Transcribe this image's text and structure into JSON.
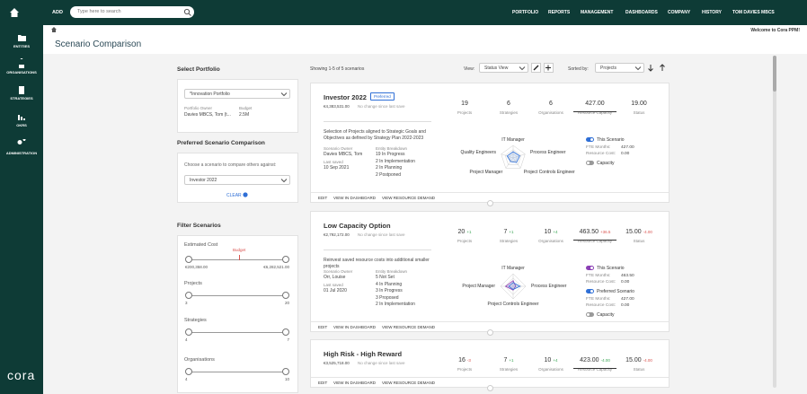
{
  "nav": {
    "add": "ADD",
    "search": "Type here to search",
    "links": [
      "PORTFOLIO",
      "REPORTS",
      "MANAGEMENT",
      "DASHBOARDS",
      "COMPANY",
      "HISTORY",
      "TOM DAVIES MBCS"
    ]
  },
  "sidebar": {
    "items": [
      "ENTITIES",
      "ORGANISATIONS",
      "STRATEGIES",
      "OKRS",
      "ADMINISTRATION"
    ],
    "logo": "cora"
  },
  "welcome": "Welcome to Cora PPM!",
  "page_title": "Scenario Comparison",
  "select_portfolio": {
    "heading": "Select Portfolio",
    "selected": "*Innovation Portfolio",
    "owner_label": "Portfolio Owner",
    "owner": "Davies MBCS, Tom (t...",
    "budget_label": "Budget",
    "budget": "2.5M"
  },
  "preferred": {
    "heading": "Preferred Scenario Comparison",
    "prompt": "Choose a scenario to compare others against:",
    "selected": "Investor 2022",
    "clear": "CLEAR"
  },
  "filters": {
    "heading": "Filter Scenarios",
    "items": [
      {
        "label": "Estimated Cost",
        "marker": "Budget",
        "min": "€200,358.00",
        "max": "€6,282,521.00"
      },
      {
        "label": "Projects",
        "min": "3",
        "max": "20"
      },
      {
        "label": "Strategies",
        "min": "4",
        "max": "7"
      },
      {
        "label": "Organisations",
        "min": "4",
        "max": "10"
      }
    ]
  },
  "toolbar": {
    "showing": "Showing 1-5 of 5 scenarios",
    "view_label": "View:",
    "view": "Status View",
    "sort_label": "Sorted by:",
    "sort": "Projects"
  },
  "scenarios": [
    {
      "name": "Investor 2022",
      "badge": "Preferred",
      "cost": "€4,383,531.00",
      "change": "No change since last save",
      "stats": [
        {
          "value": "19",
          "label": "Projects"
        },
        {
          "value": "6",
          "label": "Strategies"
        },
        {
          "value": "6",
          "label": "Organisations"
        },
        {
          "value": "427.00",
          "label": "Resource Capacity"
        },
        {
          "value": "19.00",
          "label": "Status"
        }
      ],
      "description": "Selection of Projects aligned to Strategic Goals and Objectives as defined by Strategy Plan 2022-2023",
      "owner_label": "Scenario Owner",
      "owner": "Davies MBCS, Tom",
      "saved_label": "Last saved",
      "saved": "10 Sep 2021",
      "breakdown_label": "Entity Breakdown",
      "breakdown": [
        "19 In Progress",
        "2 In Implementation",
        "2 In Planning",
        "2 Postponed"
      ],
      "radar": [
        "IT Manager",
        "Process Engineer",
        "Project Controls Engineer",
        "Project Manager",
        "Quality Engineers"
      ],
      "legend": [
        {
          "toggle": "This Scenario",
          "on": true,
          "color": "#2f6fd6"
        },
        {
          "key": "FTE Months:",
          "value": "427.00"
        },
        {
          "key": "Resource Cost:",
          "value": "0.00"
        },
        {
          "toggle": "Capacity",
          "on": false,
          "color": "#2f6fd6"
        }
      ],
      "actions": [
        "EDIT",
        "VIEW IN DASHBOARD",
        "VIEW RESOURCE DEMAND"
      ]
    },
    {
      "name": "Low Capacity Option",
      "cost": "€2,792,172.00",
      "change": "No change since last save",
      "stats": [
        {
          "value": "20",
          "delta": "+1",
          "delta_color": "#3aa655",
          "label": "Projects"
        },
        {
          "value": "7",
          "delta": "+1",
          "delta_color": "#3aa655",
          "label": "Strategies"
        },
        {
          "value": "10",
          "delta": "+4",
          "delta_color": "#3aa655",
          "label": "Organisations"
        },
        {
          "value": "463.50",
          "delta": "+36.5",
          "delta_color": "#d9534f",
          "label": "Resource Capacity"
        },
        {
          "value": "15.00",
          "delta": "-4.00",
          "delta_color": "#d9534f",
          "label": "Status"
        }
      ],
      "description": "Reinvest saved resource costs into additional smaller projects",
      "owner_label": "Scenario Owner",
      "owner": "Orr, Louise",
      "saved_label": "Last saved",
      "saved": "01 Jul 2020",
      "breakdown_label": "Entity Breakdown",
      "breakdown": [
        "5 Not Set",
        "4 In Planning",
        "3 In Progress",
        "3 Proposed",
        "2 In Implementation"
      ],
      "radar": [
        "IT Manager",
        "Process Engineer",
        "Project Controls Engineer",
        "Project Manager"
      ],
      "legend": [
        {
          "toggle": "This Scenario",
          "on": true,
          "color": "#8b3fb5"
        },
        {
          "key": "FTE Months:",
          "value": "463.50"
        },
        {
          "key": "Resource Cost:",
          "value": "0.00"
        },
        {
          "toggle": "Preferred Scenario",
          "on": true,
          "color": "#2f6fd6"
        },
        {
          "key": "FTE Months:",
          "value": "427.00"
        },
        {
          "key": "Resource Cost:",
          "value": "0.00"
        },
        {
          "toggle": "Capacity",
          "on": false,
          "color": "#2f6fd6"
        }
      ],
      "actions": [
        "EDIT",
        "VIEW IN DASHBOARD",
        "VIEW RESOURCE DEMAND"
      ]
    },
    {
      "name": "High Risk - High Reward",
      "cost": "€3,525,718.00",
      "change": "No change since last save",
      "stats": [
        {
          "value": "16",
          "delta": "-3",
          "delta_color": "#d9534f",
          "label": "Projects"
        },
        {
          "value": "7",
          "delta": "+1",
          "delta_color": "#3aa655",
          "label": "Strategies"
        },
        {
          "value": "10",
          "delta": "+4",
          "delta_color": "#3aa655",
          "label": "Organisations"
        },
        {
          "value": "423.00",
          "delta": "-4.00",
          "delta_color": "#3aa655",
          "label": "Resource Capacity"
        },
        {
          "value": "15.00",
          "delta": "-4.00",
          "delta_color": "#d9534f",
          "label": "Status"
        }
      ],
      "actions": [
        "EDIT",
        "VIEW IN DASHBOARD",
        "VIEW RESOURCE DEMAND"
      ]
    }
  ]
}
